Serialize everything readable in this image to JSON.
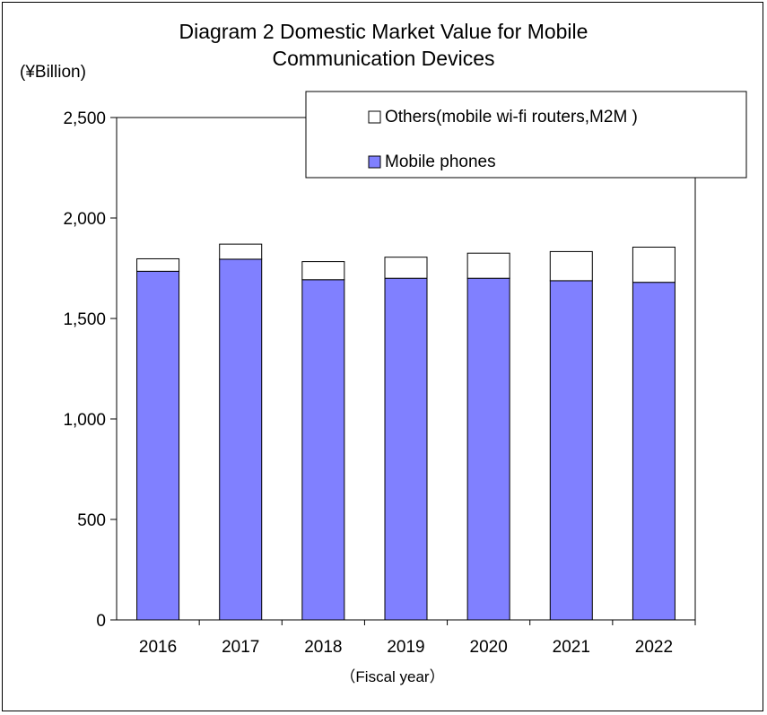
{
  "chart_data": {
    "type": "bar",
    "stacked": true,
    "title": "Diagram 2 Domestic Market Value for Mobile Communication Devices",
    "title_lines": [
      "Diagram 2 Domestic Market Value for Mobile",
      "Communication Devices"
    ],
    "unit_label": "(¥Billion)",
    "xlabel": "（Fiscal year）",
    "categories": [
      "2016",
      "2017",
      "2018",
      "2019",
      "2020",
      "2021",
      "2022"
    ],
    "ylim": [
      0,
      2500
    ],
    "yticks": [
      0,
      500,
      1000,
      1500,
      2000,
      2500
    ],
    "ytick_labels": [
      "0",
      "500",
      "1,000",
      "1,500",
      "2,000",
      "2,500"
    ],
    "grid": false,
    "legend_position": "top-right",
    "series": [
      {
        "name": "Mobile phones",
        "color": "#8080ff",
        "values": [
          1735,
          1795,
          1693,
          1700,
          1700,
          1688,
          1680
        ]
      },
      {
        "name": "Others(mobile wi-fi routers,M2M )",
        "color": "#ffffff",
        "values": [
          62,
          75,
          90,
          105,
          125,
          145,
          175
        ]
      }
    ]
  }
}
